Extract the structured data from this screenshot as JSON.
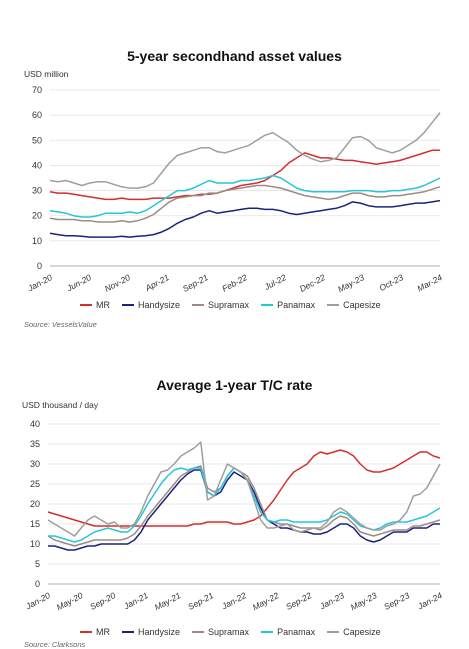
{
  "chart_data": [
    {
      "type": "line",
      "title": "5-year secondhand asset values",
      "ylabel": "USD million",
      "ylim": [
        0,
        70
      ],
      "yticks": [
        0,
        10,
        20,
        30,
        40,
        50,
        60,
        70
      ],
      "xtick_labels": [
        "Jan-20",
        "Jun-20",
        "Nov-20",
        "Apr-21",
        "Sep-21",
        "Feb-22",
        "Jul-22",
        "Dec-22",
        "May-23",
        "Oct-23",
        "Mar-24"
      ],
      "source": "Source: VesselsValue",
      "grid": true,
      "legend_position": "bottom",
      "series": [
        {
          "name": "MR",
          "color": "#d32f2f",
          "values": [
            29.5,
            29,
            29,
            28.5,
            28,
            27.5,
            27,
            26.5,
            26.5,
            27,
            26.5,
            26.5,
            26.5,
            27,
            27,
            27,
            27.5,
            28,
            28,
            28.5,
            28.5,
            29,
            30,
            31,
            32,
            32.5,
            33,
            34,
            36,
            38,
            41,
            43,
            45,
            44,
            43,
            43,
            42.5,
            42,
            42,
            41.5,
            41,
            40.5,
            41,
            41.5,
            42,
            43,
            44,
            45,
            46,
            46
          ]
        },
        {
          "name": "Handysize",
          "color": "#1a237e",
          "values": [
            13,
            12.5,
            12,
            12,
            11.8,
            11.5,
            11.5,
            11.5,
            11.5,
            11.8,
            11.5,
            11.8,
            12,
            12.5,
            13.5,
            15,
            17,
            18.5,
            19.5,
            21,
            22,
            21,
            21.5,
            22,
            22.5,
            23,
            23,
            22.5,
            22.5,
            22,
            21,
            20.5,
            21,
            21.5,
            22,
            22.5,
            23,
            24,
            25.5,
            25,
            24,
            23.5,
            23.5,
            23.5,
            24,
            24.5,
            25,
            25,
            25.5,
            26
          ]
        },
        {
          "name": "Supramax",
          "color": "#9e8b84",
          "values": [
            19,
            18.5,
            18.5,
            18.5,
            18,
            18,
            17.5,
            17.5,
            17.5,
            18,
            17.5,
            18,
            19,
            20.5,
            23,
            25.5,
            27,
            27.5,
            28,
            28,
            29,
            29,
            30,
            30.5,
            31,
            31.5,
            32,
            32,
            31.5,
            31,
            30,
            29,
            28,
            27.5,
            27,
            26.5,
            27,
            28,
            29,
            29,
            28,
            27.5,
            27.5,
            28,
            28,
            28.5,
            29,
            29.5,
            30.5,
            31.5
          ]
        },
        {
          "name": "Panamax",
          "color": "#26c6da",
          "values": [
            22,
            21.5,
            21,
            20,
            19.5,
            19.5,
            20,
            21,
            21,
            21,
            21.5,
            21,
            22,
            24,
            26,
            28,
            30,
            30,
            31,
            32.5,
            34,
            33,
            33,
            33,
            34,
            34,
            34.5,
            35,
            36,
            35,
            33,
            31,
            30,
            29.5,
            29.5,
            29.5,
            29.5,
            29.5,
            30,
            30,
            30,
            29.5,
            29.5,
            30,
            30,
            30.5,
            31,
            32,
            33.5,
            35
          ]
        },
        {
          "name": "Capesize",
          "color": "#9e9e9e",
          "values": [
            34,
            33.5,
            34,
            33,
            32,
            33,
            33.5,
            33.5,
            32.5,
            31.5,
            31,
            31,
            31.5,
            33,
            37,
            41,
            44,
            45,
            46,
            47,
            47,
            45.5,
            45,
            46,
            47,
            48,
            50,
            52,
            53,
            51,
            49,
            46,
            44,
            42.5,
            41.5,
            42,
            43,
            47,
            51,
            51.5,
            50,
            47,
            46,
            45,
            46,
            48,
            50,
            53,
            57,
            61
          ]
        }
      ]
    },
    {
      "type": "line",
      "title": "Average 1-year T/C rate",
      "ylabel": "USD thousand / day",
      "ylim": [
        0,
        40
      ],
      "yticks": [
        0,
        5,
        10,
        15,
        20,
        25,
        30,
        35,
        40
      ],
      "xtick_labels": [
        "Jan-20",
        "May-20",
        "Sep-20",
        "Jan-21",
        "May-21",
        "Sep-21",
        "Jan-22",
        "May-22",
        "Sep-22",
        "Jan-23",
        "May-23",
        "Sep-23",
        "Jan-24"
      ],
      "source": "Source: Clarksons",
      "grid": true,
      "legend_position": "bottom",
      "series": [
        {
          "name": "MR",
          "color": "#d32f2f",
          "values": [
            18,
            17.5,
            17,
            16.5,
            16,
            15.5,
            15,
            14.5,
            14.5,
            14.5,
            14.5,
            14.5,
            14.5,
            14.5,
            14.5,
            14.5,
            14.5,
            14.5,
            14.5,
            14.5,
            14.5,
            14.5,
            15,
            15,
            15.5,
            15.5,
            15.5,
            15.5,
            15,
            15,
            15.5,
            16,
            17,
            19,
            21,
            23.5,
            26,
            28,
            29,
            30,
            32,
            33,
            32.5,
            33,
            33.5,
            33,
            32,
            30,
            28.5,
            28,
            28,
            28.5,
            29,
            30,
            31,
            32,
            33,
            33,
            32,
            31.5
          ]
        },
        {
          "name": "Handysize",
          "color": "#1a237e",
          "values": [
            9.5,
            9.5,
            9,
            8.5,
            8.5,
            9,
            9.5,
            9.5,
            10,
            10,
            10,
            10,
            10,
            11,
            13,
            16,
            18,
            20,
            22,
            24,
            26,
            27.5,
            28.5,
            28.5,
            23,
            22,
            23,
            26,
            28,
            27,
            26,
            23,
            19,
            16,
            15,
            14,
            14,
            13.5,
            13,
            13,
            12.5,
            12.5,
            13,
            14,
            15,
            15,
            14,
            12,
            11,
            10.5,
            11,
            12,
            13,
            13,
            13,
            14,
            14,
            14,
            15,
            15
          ]
        },
        {
          "name": "Supramax",
          "color": "#9e8b84",
          "values": [
            12,
            11,
            10.5,
            10,
            9.5,
            10,
            10.5,
            11,
            11,
            11,
            11,
            11,
            11.5,
            12.5,
            14.5,
            17,
            19,
            21,
            23,
            25,
            27,
            28,
            29,
            29.5,
            24,
            23,
            24,
            27,
            29,
            28,
            27,
            24,
            20,
            16,
            15.5,
            15,
            15,
            14.5,
            14,
            14,
            14,
            13.5,
            14.5,
            16,
            17,
            16.5,
            15,
            13,
            12.5,
            12,
            12.5,
            13,
            13.5,
            13.5,
            13.5,
            14.5,
            14.5,
            15,
            15.5,
            16
          ]
        },
        {
          "name": "Panamax",
          "color": "#26c6da",
          "values": [
            12,
            12,
            11.5,
            11,
            10.5,
            11,
            12,
            13,
            13.5,
            14,
            13.5,
            13,
            13,
            14.5,
            17,
            20,
            22.5,
            25,
            27,
            28.5,
            29,
            28.5,
            29,
            29,
            23,
            22,
            24,
            27,
            29,
            28,
            26,
            22,
            18,
            16,
            15.5,
            16,
            16,
            15.5,
            15.5,
            15.5,
            15.5,
            15.5,
            16,
            17,
            18,
            17.5,
            16,
            14.5,
            14,
            13.5,
            14,
            15,
            15.5,
            15.5,
            15.5,
            16,
            16.5,
            17,
            18,
            19
          ]
        },
        {
          "name": "Capesize",
          "color": "#9e9e9e",
          "values": [
            16,
            15,
            14,
            13,
            12,
            14,
            16,
            17,
            16,
            15,
            15.5,
            14,
            14,
            15,
            18,
            22,
            25,
            28,
            28.5,
            30,
            32,
            33,
            34,
            35.5,
            21,
            22,
            26,
            30,
            29,
            28,
            26,
            21,
            16,
            14,
            14,
            14.5,
            15,
            13.5,
            13,
            13.5,
            14,
            14,
            15.5,
            18,
            19,
            18,
            16.5,
            15,
            14,
            13.5,
            13.5,
            14.5,
            15,
            16,
            18,
            22,
            22.5,
            24,
            27,
            30
          ]
        }
      ]
    }
  ]
}
